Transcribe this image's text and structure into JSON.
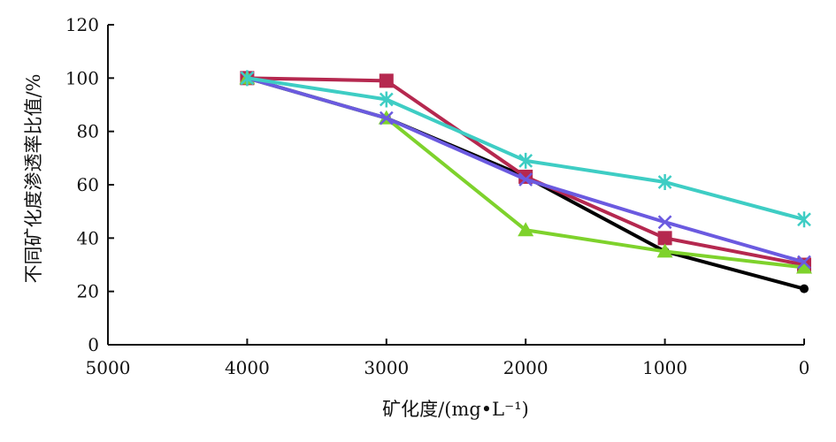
{
  "chart_data": {
    "type": "line",
    "title": "",
    "xlabel": "矿化度/(mg•L⁻¹)",
    "ylabel": "不同矿化度渗透率比值/%",
    "xlim": [
      5000,
      0
    ],
    "ylim": [
      0,
      120
    ],
    "x_reversed": true,
    "xticks": [
      "5000",
      "4000",
      "3000",
      "2000",
      "1000",
      "0"
    ],
    "yticks": [
      "0",
      "20",
      "40",
      "60",
      "80",
      "100",
      "120"
    ],
    "grid": false,
    "legend": "none",
    "x": [
      4000,
      3000,
      2000,
      1000,
      0
    ],
    "series": [
      {
        "color": "#000000",
        "marker": "circle",
        "values": [
          100,
          85,
          63,
          35,
          21
        ]
      },
      {
        "color": "#b5284f",
        "marker": "square",
        "values": [
          100,
          99,
          63,
          40,
          30
        ]
      },
      {
        "color": "#7ed22c",
        "marker": "triangle",
        "values": [
          100,
          85,
          43,
          35,
          29
        ]
      },
      {
        "color": "#6b5ae0",
        "marker": "x",
        "values": [
          100,
          85,
          62,
          46,
          31
        ]
      },
      {
        "color": "#3ecdc4",
        "marker": "asterisk",
        "values": [
          100,
          92,
          69,
          61,
          47
        ]
      }
    ]
  }
}
